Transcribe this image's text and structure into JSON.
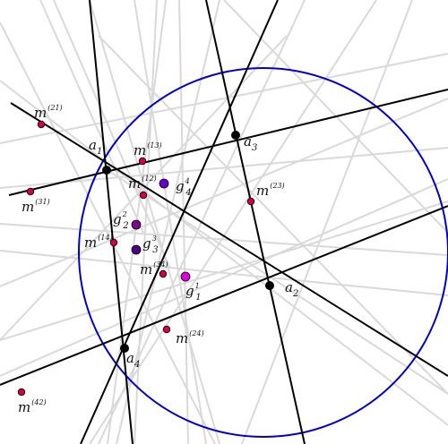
{
  "diagram": {
    "circle": {
      "color": "#0000cc"
    },
    "colors": {
      "gray_line": "#d9d9d9",
      "black_line": "#000000",
      "vertex": "#000000",
      "midpoint": "#d1003f",
      "g_dark": "#4b0082",
      "g_mid": "#7a0a8a",
      "g_violet": "#6a00cc",
      "g_magenta": "#e000e0"
    },
    "vertices": [
      {
        "base": "a",
        "sub": "1"
      },
      {
        "base": "a",
        "sub": "2"
      },
      {
        "base": "a",
        "sub": "3"
      },
      {
        "base": "a",
        "sub": "4"
      }
    ],
    "midpoints": [
      {
        "base": "m",
        "sup": "(21)"
      },
      {
        "base": "m",
        "sup": "(13)"
      },
      {
        "base": "m",
        "sup": "(12)"
      },
      {
        "base": "m",
        "sup": "(31)"
      },
      {
        "base": "m",
        "sup": "(23)"
      },
      {
        "base": "m",
        "sup": "(14)"
      },
      {
        "base": "m",
        "sup": "(34)"
      },
      {
        "base": "m",
        "sup": "(24)"
      },
      {
        "base": "m",
        "sup": "(42)"
      }
    ],
    "g_points": [
      {
        "base": "g",
        "sub": "4",
        "sup": "4",
        "fill": "g_violet"
      },
      {
        "base": "g",
        "sub": "2",
        "sup": "2",
        "fill": "g_mid"
      },
      {
        "base": "g",
        "sub": "3",
        "sup": "3",
        "fill": "g_dark"
      },
      {
        "base": "g",
        "sub": "1",
        "sup": "1",
        "fill": "g_magenta"
      }
    ]
  }
}
